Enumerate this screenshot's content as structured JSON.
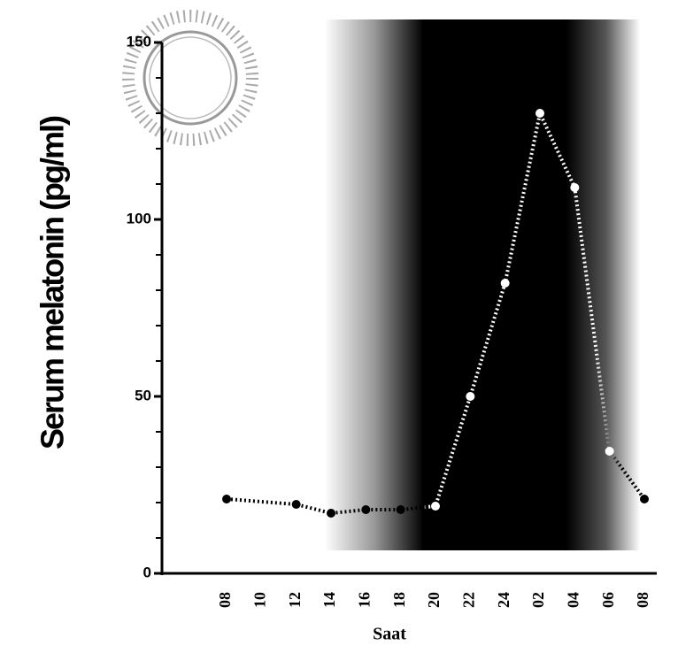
{
  "chart_data": {
    "type": "line",
    "y_label": "Serum melatonin (pg/ml)",
    "x_label": "Saat",
    "categories": [
      "08",
      "10",
      "12",
      "14",
      "16",
      "18",
      "20",
      "22",
      "24",
      "02",
      "04",
      "06",
      "08"
    ],
    "values": [
      21,
      null,
      19.5,
      17,
      18,
      18,
      19,
      50,
      82,
      130,
      109,
      34.5,
      21
    ],
    "ylim": [
      0,
      150
    ],
    "yticks": [
      0,
      50,
      100,
      150
    ],
    "yminor_ticks": [
      10,
      20,
      30,
      40,
      60,
      70,
      80,
      90,
      110,
      120,
      130,
      140
    ]
  }
}
